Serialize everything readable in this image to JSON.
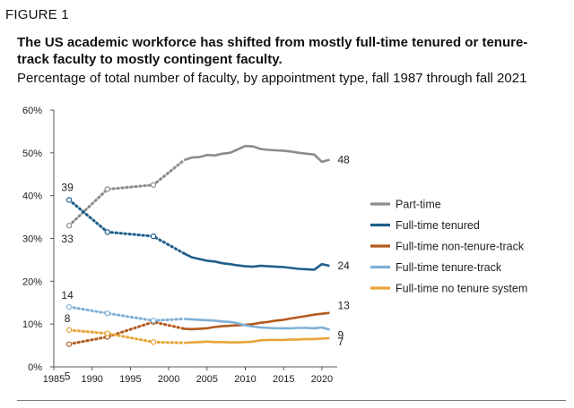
{
  "header": {
    "figure_label": "FIGURE 1",
    "title": "The US academic workforce has shifted from mostly full-time tenured or tenure-track faculty to mostly contingent faculty.",
    "subtitle": "Percentage of total number of faculty, by appointment type, fall 1987 through fall 2021"
  },
  "chart_data": {
    "type": "line",
    "title": "",
    "xlabel": "",
    "ylabel": "",
    "xlim": [
      1985,
      2022
    ],
    "ylim": [
      0,
      60
    ],
    "x_ticks": [
      1985,
      1990,
      1995,
      2000,
      2005,
      2010,
      2015,
      2020
    ],
    "y_ticks": [
      0,
      10,
      20,
      30,
      40,
      50,
      60
    ],
    "y_tick_labels": [
      "0%",
      "10%",
      "20%",
      "30%",
      "40%",
      "50%",
      "60%"
    ],
    "grid": false,
    "legend_position": "right",
    "note": "Dotted segments with open circles connect survey years 1987, 1992, 1998 and 2002; solid lines are annual data from 2002 onward.",
    "series": [
      {
        "name": "Part-time",
        "color": "#8c8c8c",
        "start_label": "33",
        "end_label": "48",
        "dotted": [
          [
            1987,
            33
          ],
          [
            1992,
            41.5
          ],
          [
            1998,
            42.5
          ],
          [
            2002,
            48.3
          ]
        ],
        "solid": [
          [
            2002,
            48.3
          ],
          [
            2003,
            48.9
          ],
          [
            2004,
            49.0
          ],
          [
            2005,
            49.5
          ],
          [
            2006,
            49.4
          ],
          [
            2007,
            49.8
          ],
          [
            2008,
            50.0
          ],
          [
            2009,
            50.8
          ],
          [
            2010,
            51.6
          ],
          [
            2011,
            51.5
          ],
          [
            2012,
            50.9
          ],
          [
            2013,
            50.7
          ],
          [
            2014,
            50.6
          ],
          [
            2015,
            50.5
          ],
          [
            2016,
            50.3
          ],
          [
            2017,
            50.0
          ],
          [
            2018,
            49.8
          ],
          [
            2019,
            49.6
          ],
          [
            2020,
            47.9
          ],
          [
            2021,
            48.4
          ]
        ]
      },
      {
        "name": "Full-time tenured",
        "color": "#1f5f8b",
        "start_label": "39",
        "end_label": "24",
        "dotted": [
          [
            1987,
            39
          ],
          [
            1992,
            31.5
          ],
          [
            1998,
            30.5
          ],
          [
            2002,
            26.5
          ]
        ],
        "solid": [
          [
            2002,
            26.5
          ],
          [
            2003,
            25.6
          ],
          [
            2004,
            25.2
          ],
          [
            2005,
            24.8
          ],
          [
            2006,
            24.6
          ],
          [
            2007,
            24.2
          ],
          [
            2008,
            24.0
          ],
          [
            2009,
            23.7
          ],
          [
            2010,
            23.5
          ],
          [
            2011,
            23.4
          ],
          [
            2012,
            23.6
          ],
          [
            2013,
            23.5
          ],
          [
            2014,
            23.4
          ],
          [
            2015,
            23.3
          ],
          [
            2016,
            23.1
          ],
          [
            2017,
            22.9
          ],
          [
            2018,
            22.8
          ],
          [
            2019,
            22.7
          ],
          [
            2020,
            24.0
          ],
          [
            2021,
            23.6
          ]
        ]
      },
      {
        "name": "Full-time non-tenure-track",
        "color": "#b35a1f",
        "start_label": "5",
        "end_label": "13",
        "dotted": [
          [
            1987,
            5.3
          ],
          [
            1992,
            7.0
          ],
          [
            1998,
            10.5
          ],
          [
            2002,
            8.9
          ]
        ],
        "solid": [
          [
            2002,
            8.9
          ],
          [
            2003,
            8.8
          ],
          [
            2004,
            8.9
          ],
          [
            2005,
            9.0
          ],
          [
            2006,
            9.3
          ],
          [
            2007,
            9.5
          ],
          [
            2008,
            9.6
          ],
          [
            2009,
            9.7
          ],
          [
            2010,
            9.8
          ],
          [
            2011,
            10.0
          ],
          [
            2012,
            10.3
          ],
          [
            2013,
            10.5
          ],
          [
            2014,
            10.8
          ],
          [
            2015,
            11.0
          ],
          [
            2016,
            11.3
          ],
          [
            2017,
            11.6
          ],
          [
            2018,
            11.9
          ],
          [
            2019,
            12.2
          ],
          [
            2020,
            12.4
          ],
          [
            2021,
            12.6
          ]
        ]
      },
      {
        "name": "Full-time tenure-track",
        "color": "#7fb0d6",
        "start_label": "14",
        "end_label": "9",
        "dotted": [
          [
            1987,
            14.0
          ],
          [
            1992,
            12.5
          ],
          [
            1998,
            10.8
          ],
          [
            2002,
            11.2
          ]
        ],
        "solid": [
          [
            2002,
            11.2
          ],
          [
            2003,
            11.1
          ],
          [
            2004,
            11.0
          ],
          [
            2005,
            10.9
          ],
          [
            2006,
            10.8
          ],
          [
            2007,
            10.6
          ],
          [
            2008,
            10.5
          ],
          [
            2009,
            10.2
          ],
          [
            2010,
            9.7
          ],
          [
            2011,
            9.4
          ],
          [
            2012,
            9.2
          ],
          [
            2013,
            9.1
          ],
          [
            2014,
            9.0
          ],
          [
            2015,
            9.0
          ],
          [
            2016,
            9.0
          ],
          [
            2017,
            9.1
          ],
          [
            2018,
            9.1
          ],
          [
            2019,
            9.0
          ],
          [
            2020,
            9.2
          ],
          [
            2021,
            8.7
          ]
        ]
      },
      {
        "name": "Full-time no tenure system",
        "color": "#e8a53a",
        "start_label": "8",
        "end_label": "7",
        "dotted": [
          [
            1987,
            8.6
          ],
          [
            1992,
            7.8
          ],
          [
            1998,
            5.8
          ],
          [
            2002,
            5.6
          ]
        ],
        "solid": [
          [
            2002,
            5.6
          ],
          [
            2003,
            5.7
          ],
          [
            2004,
            5.8
          ],
          [
            2005,
            5.9
          ],
          [
            2006,
            5.8
          ],
          [
            2007,
            5.8
          ],
          [
            2008,
            5.7
          ],
          [
            2009,
            5.7
          ],
          [
            2010,
            5.8
          ],
          [
            2011,
            5.9
          ],
          [
            2012,
            6.2
          ],
          [
            2013,
            6.3
          ],
          [
            2014,
            6.3
          ],
          [
            2015,
            6.3
          ],
          [
            2016,
            6.4
          ],
          [
            2017,
            6.4
          ],
          [
            2018,
            6.5
          ],
          [
            2019,
            6.5
          ],
          [
            2020,
            6.6
          ],
          [
            2021,
            6.7
          ]
        ]
      }
    ]
  }
}
